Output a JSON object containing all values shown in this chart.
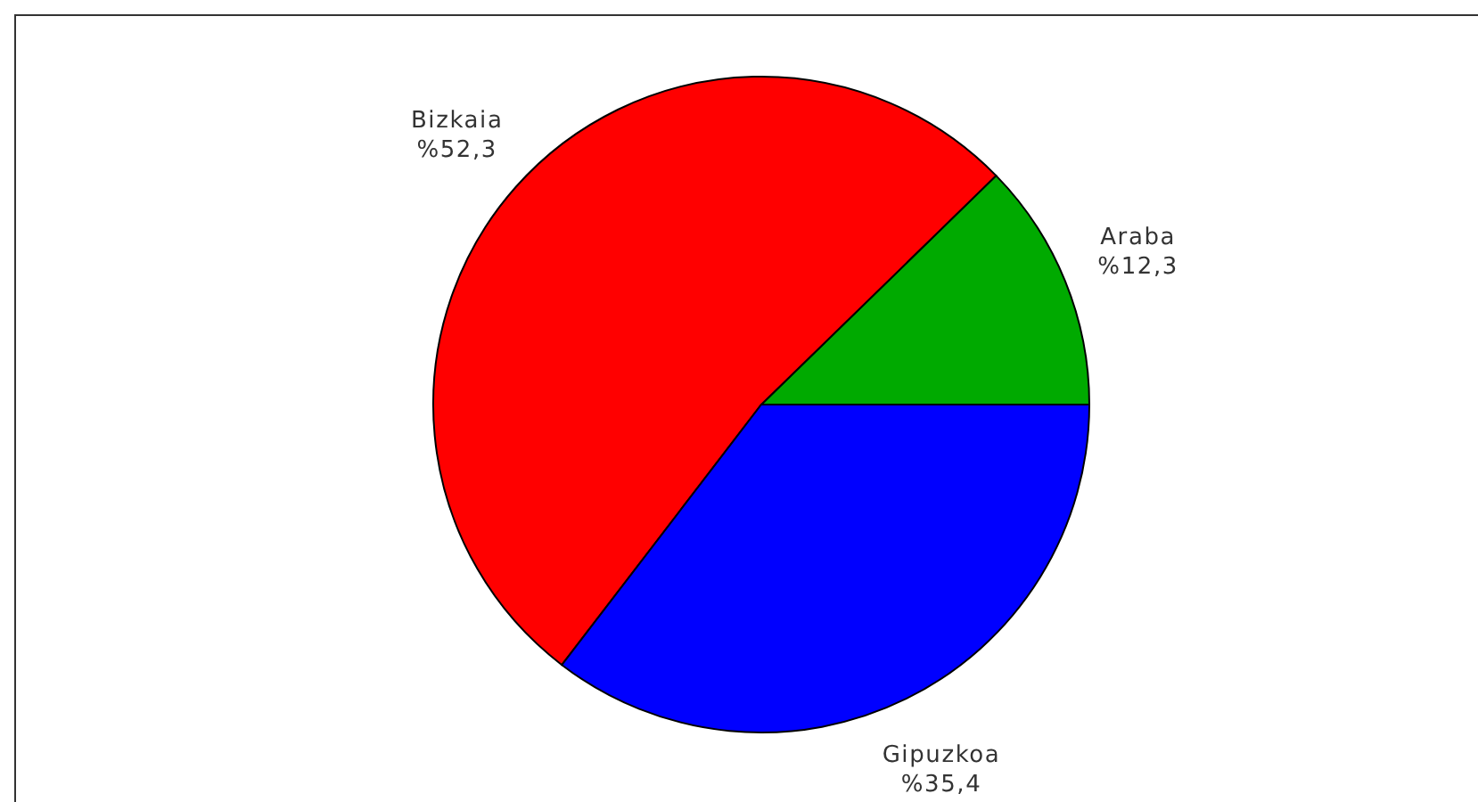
{
  "chart_data": {
    "type": "pie",
    "categories": [
      "Araba",
      "Bizkaia",
      "Gipuzkoa"
    ],
    "values": [
      12.3,
      52.3,
      35.4
    ],
    "colors": [
      "#00aa00",
      "#ff0000",
      "#0000ff"
    ],
    "value_labels": [
      "%12,3",
      "%52,3",
      "%35,4"
    ]
  }
}
